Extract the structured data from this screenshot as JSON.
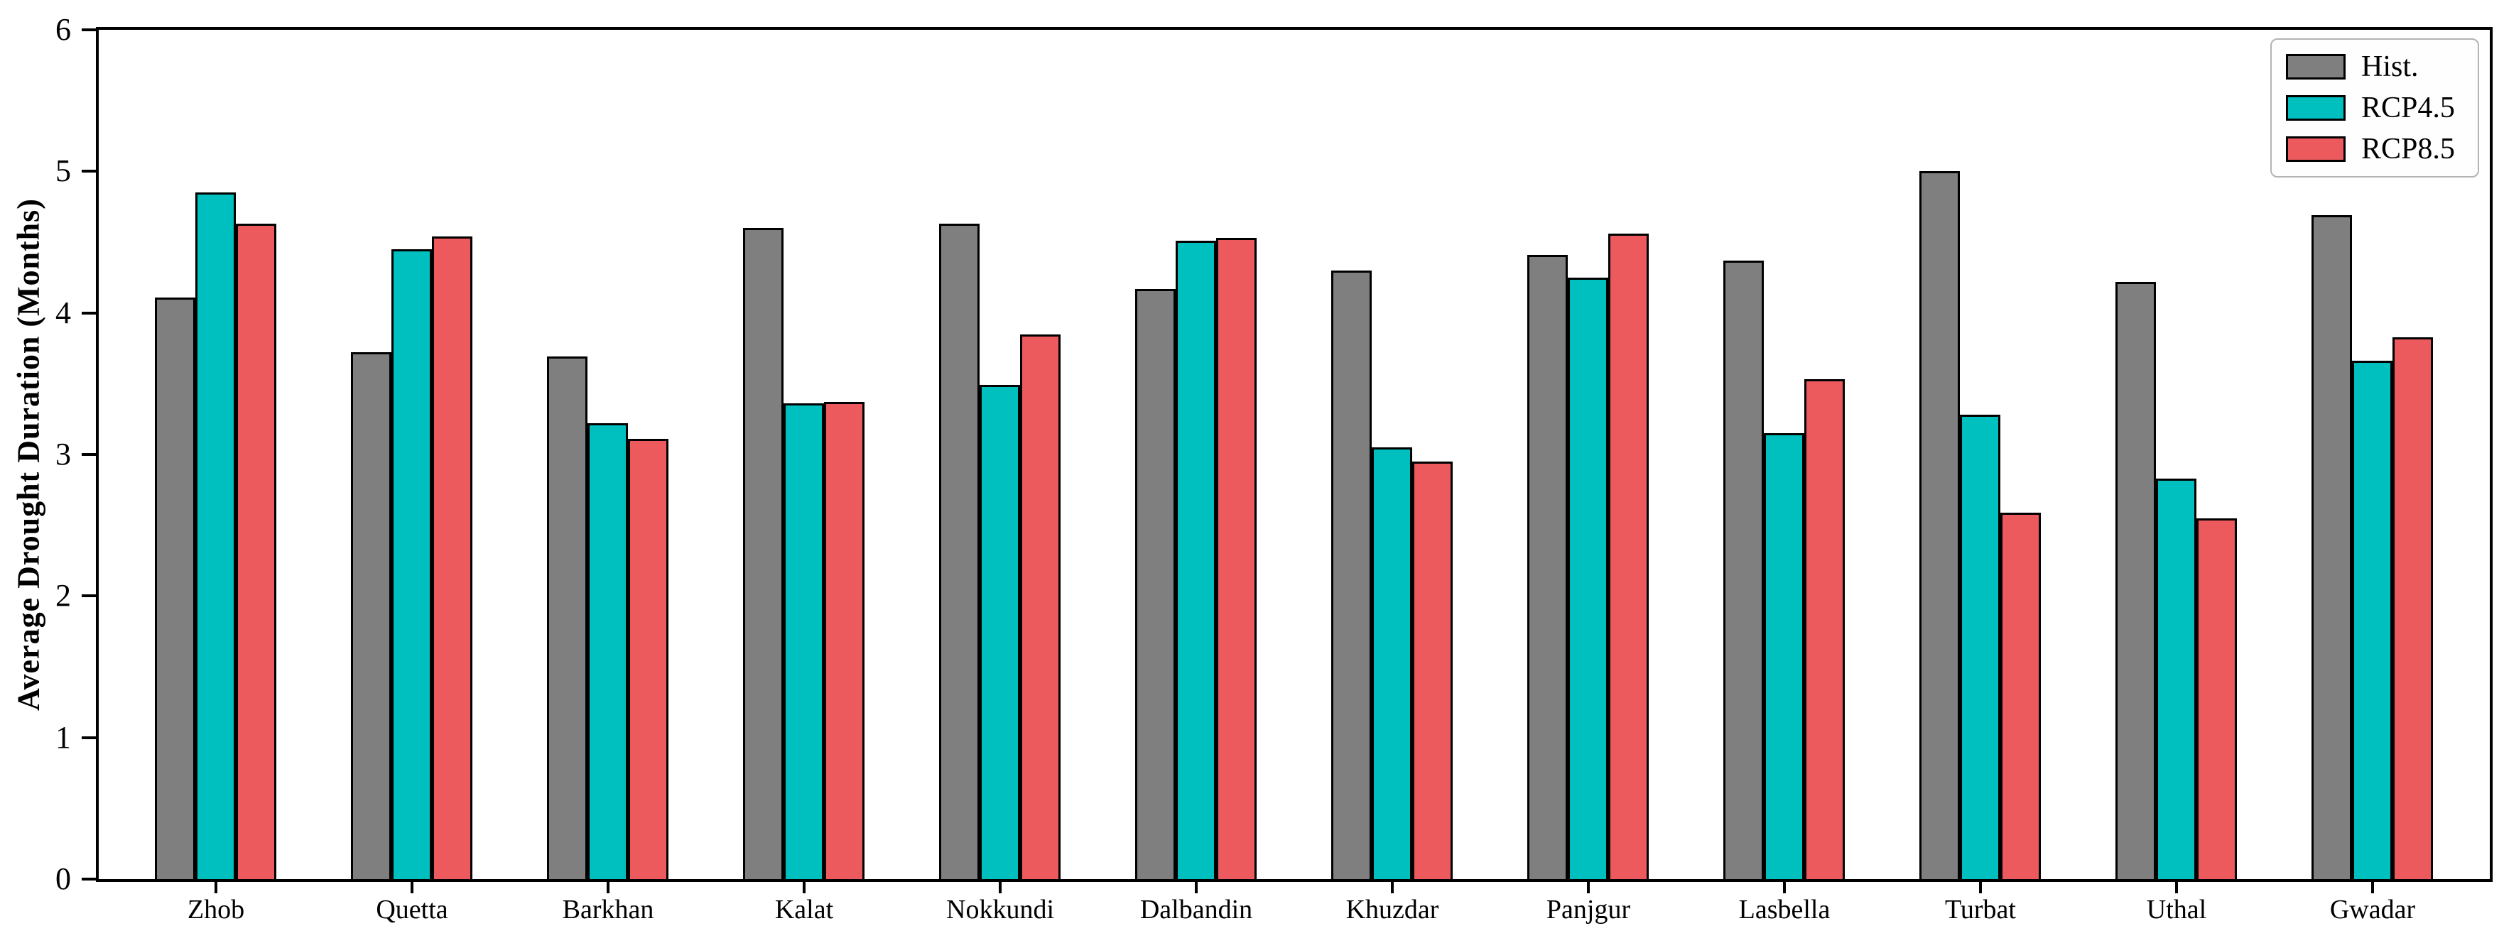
{
  "chart_data": {
    "type": "bar",
    "title": "",
    "xlabel": "",
    "ylabel": "Average Drought Duration (Months)",
    "ylim": [
      0,
      6
    ],
    "yticks": [
      0,
      1,
      2,
      3,
      4,
      5,
      6
    ],
    "grid": false,
    "legend_position": "upper right",
    "bar_edge_color": "#000000",
    "categories": [
      "Zhob",
      "Quetta",
      "Barkhan",
      "Kalat",
      "Nokkundi",
      "Dalbandin",
      "Khuzdar",
      "Panjgur",
      "Lasbella",
      "Turbat",
      "Uthal",
      "Gwadar"
    ],
    "series": [
      {
        "name": "Hist.",
        "color": "#7f7f7f",
        "values": [
          4.11,
          3.72,
          3.69,
          4.6,
          4.63,
          4.17,
          4.3,
          4.41,
          4.37,
          5.0,
          4.22,
          4.69
        ]
      },
      {
        "name": "RCP4.5",
        "color": "#00bfbf",
        "values": [
          4.85,
          4.45,
          3.22,
          3.36,
          3.49,
          4.51,
          3.05,
          4.25,
          3.15,
          3.28,
          2.83,
          3.66
        ]
      },
      {
        "name": "RCP8.5",
        "color": "#ec5a5d",
        "values": [
          4.63,
          4.54,
          3.11,
          3.37,
          3.85,
          4.53,
          2.95,
          4.56,
          3.53,
          2.59,
          2.55,
          3.83
        ]
      }
    ]
  }
}
